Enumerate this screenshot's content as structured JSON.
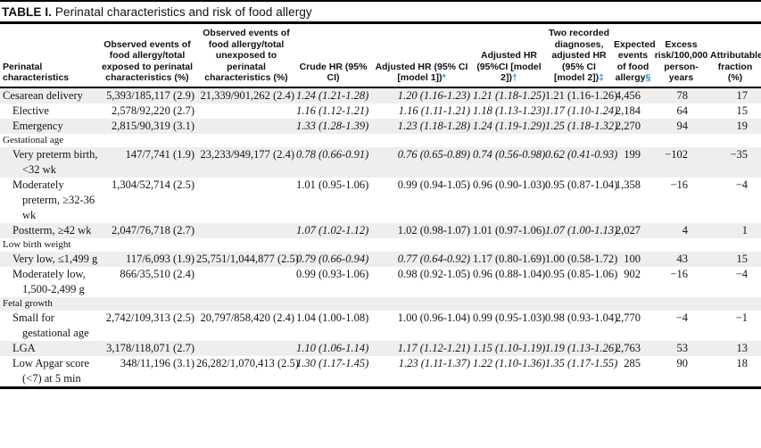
{
  "title": {
    "prefix": "TABLE I.",
    "text": " Perinatal characteristics and risk of food allergy"
  },
  "colors": {
    "footnote_marker": "#2494c6",
    "row_stripe": "#efeeec",
    "rule": "#000000"
  },
  "table": {
    "columns": [
      {
        "header": "Perinatal characteristics",
        "marker": ""
      },
      {
        "header": "Observed events of food allergy/total exposed to perinatal characteristics (%)",
        "marker": ""
      },
      {
        "header": "Observed events of food allergy/total unexposed to perinatal characteristics (%)",
        "marker": ""
      },
      {
        "header": "Crude HR (95% CI)",
        "marker": ""
      },
      {
        "header": "Adjusted HR (95% CI [model 1])",
        "marker": "*"
      },
      {
        "header": "Adjusted HR (95%CI [model 2])",
        "marker": "†"
      },
      {
        "header": "Two recorded diagnoses, adjusted HR (95% CI [model 2])",
        "marker": "‡"
      },
      {
        "header": "Expected events of food allergy",
        "marker": "§"
      },
      {
        "header": "Excess risk/100,000 person-years",
        "marker": ""
      },
      {
        "header": "Attributable fraction (%)",
        "marker": ""
      }
    ],
    "rows": [
      {
        "type": "row",
        "label": "Cesarean delivery",
        "indent": 0,
        "stripe": true,
        "exposed": "5,393/185,117 (2.9)",
        "unexposed": "21,339/901,262 (2.4)",
        "crude": {
          "t": "1.24 (1.21-1.28)",
          "i": true
        },
        "model1": {
          "t": "1.20 (1.16-1.23)",
          "i": true
        },
        "model2": {
          "t": "1.21 (1.18-1.25)",
          "i": true
        },
        "two": {
          "t": "1.21 (1.16-1.26)",
          "i": false
        },
        "expected": "4,456",
        "excess": "78",
        "fraction": "17"
      },
      {
        "type": "row",
        "label": "Elective",
        "indent": 1,
        "stripe": false,
        "exposed": "2,578/92,220 (2.7)",
        "unexposed": "",
        "crude": {
          "t": "1.16 (1.12-1.21)",
          "i": true
        },
        "model1": {
          "t": "1.16 (1.11-1.21)",
          "i": true
        },
        "model2": {
          "t": "1.18 (1.13-1.23)",
          "i": true
        },
        "two": {
          "t": "1.17 (1.10-1.24)",
          "i": true
        },
        "expected": "2,184",
        "excess": "64",
        "fraction": "15"
      },
      {
        "type": "row",
        "label": "Emergency",
        "indent": 1,
        "stripe": true,
        "exposed": "2,815/90,319 (3.1)",
        "unexposed": "",
        "crude": {
          "t": "1.33 (1.28-1.39)",
          "i": true
        },
        "model1": {
          "t": "1.23 (1.18-1.28)",
          "i": true
        },
        "model2": {
          "t": "1.24 (1.19-1.29)",
          "i": true
        },
        "two": {
          "t": "1.25 (1.18-1.32)",
          "i": true
        },
        "expected": "2,270",
        "excess": "94",
        "fraction": "19"
      },
      {
        "type": "section",
        "label": "Gestational age",
        "stripe": false
      },
      {
        "type": "row",
        "label": "Very preterm birth, <32 wk",
        "indent": 1,
        "stripe": true,
        "exposed": "147/7,741 (1.9)",
        "unexposed": "23,233/949,177 (2.4)",
        "crude": {
          "t": "0.78 (0.66-0.91)",
          "i": true
        },
        "model1": {
          "t": "0.76 (0.65-0.89)",
          "i": true
        },
        "model2": {
          "t": "0.74 (0.56-0.98)",
          "i": true
        },
        "two": {
          "t": "0.62 (0.41-0.93)",
          "i": true
        },
        "expected": "199",
        "excess": "−102",
        "fraction": "−35"
      },
      {
        "type": "row",
        "label": "Moderately preterm, ≥32-36 wk",
        "indent": 1,
        "stripe": false,
        "exposed": "1,304/52,714 (2.5)",
        "unexposed": "",
        "crude": {
          "t": "1.01 (0.95-1.06)",
          "i": false
        },
        "model1": {
          "t": "0.99 (0.94-1.05)",
          "i": false
        },
        "model2": {
          "t": "0.96 (0.90-1.03)",
          "i": false
        },
        "two": {
          "t": "0.95 (0.87-1.04)",
          "i": false
        },
        "expected": "1,358",
        "excess": "−16",
        "fraction": "−4"
      },
      {
        "type": "row",
        "label": "Postterm, ≥42 wk",
        "indent": 1,
        "stripe": true,
        "exposed": "2,047/76,718 (2.7)",
        "unexposed": "",
        "crude": {
          "t": "1.07 (1.02-1.12)",
          "i": true
        },
        "model1": {
          "t": "1.02 (0.98-1.07)",
          "i": false
        },
        "model2": {
          "t": "1.01 (0.97-1.06)",
          "i": false
        },
        "two": {
          "t": "1.07 (1.00-1.13)",
          "i": true
        },
        "expected": "2,027",
        "excess": "4",
        "fraction": "1"
      },
      {
        "type": "section",
        "label": "Low birth weight",
        "stripe": false
      },
      {
        "type": "row",
        "label": "Very low, ≤1,499 g",
        "indent": 1,
        "stripe": true,
        "exposed": "117/6,093 (1.9)",
        "unexposed": "25,751/1,044,877 (2.5)",
        "crude": {
          "t": "0.79 (0.66-0.94)",
          "i": true
        },
        "model1": {
          "t": "0.77 (0.64-0.92)",
          "i": true
        },
        "model2": {
          "t": "1.17 (0.80-1.69)",
          "i": false
        },
        "two": {
          "t": "1.00 (0.58-1.72)",
          "i": false
        },
        "expected": "100",
        "excess": "43",
        "fraction": "15"
      },
      {
        "type": "row",
        "label": "Moderately low, 1,500-2,499 g",
        "indent": 1,
        "stripe": false,
        "exposed": "866/35,510 (2.4)",
        "unexposed": "",
        "crude": {
          "t": "0.99 (0.93-1.06)",
          "i": false
        },
        "model1": {
          "t": "0.98 (0.92-1.05)",
          "i": false
        },
        "model2": {
          "t": "0.96 (0.88-1.04)",
          "i": false
        },
        "two": {
          "t": "0.95 (0.85-1.06)",
          "i": false
        },
        "expected": "902",
        "excess": "−16",
        "fraction": "−4"
      },
      {
        "type": "section",
        "label": "Fetal growth",
        "stripe": true
      },
      {
        "type": "row",
        "label": "Small for gestational age",
        "indent": 1,
        "stripe": false,
        "exposed": "2,742/109,313 (2.5)",
        "unexposed": "20,797/858,420 (2.4)",
        "crude": {
          "t": "1.04 (1.00-1.08)",
          "i": false
        },
        "model1": {
          "t": "1.00 (0.96-1.04)",
          "i": false
        },
        "model2": {
          "t": "0.99 (0.95-1.03)",
          "i": false
        },
        "two": {
          "t": "0.98 (0.93-1.04)",
          "i": false
        },
        "expected": "2,770",
        "excess": "−4",
        "fraction": "−1"
      },
      {
        "type": "row",
        "label": "LGA",
        "indent": 1,
        "stripe": true,
        "exposed": "3,178/118,071 (2.7)",
        "unexposed": "",
        "crude": {
          "t": "1.10 (1.06-1.14)",
          "i": true
        },
        "model1": {
          "t": "1.17 (1.12-1.21)",
          "i": true
        },
        "model2": {
          "t": "1.15 (1.10-1.19)",
          "i": true
        },
        "two": {
          "t": "1.19 (1.13-1.26)",
          "i": true
        },
        "expected": "2,763",
        "excess": "53",
        "fraction": "13"
      },
      {
        "type": "row",
        "label": "Low Apgar score (<7) at 5 min",
        "indent": 1,
        "stripe": false,
        "exposed": "348/11,196 (3.1)",
        "unexposed": "26,282/1,070,413 (2.5)",
        "crude": {
          "t": "1.30 (1.17-1.45)",
          "i": true
        },
        "model1": {
          "t": "1.23 (1.11-1.37)",
          "i": true
        },
        "model2": {
          "t": "1.22 (1.10-1.36)",
          "i": true
        },
        "two": {
          "t": "1.35 (1.17-1.55)",
          "i": true
        },
        "expected": "285",
        "excess": "90",
        "fraction": "18"
      }
    ]
  }
}
